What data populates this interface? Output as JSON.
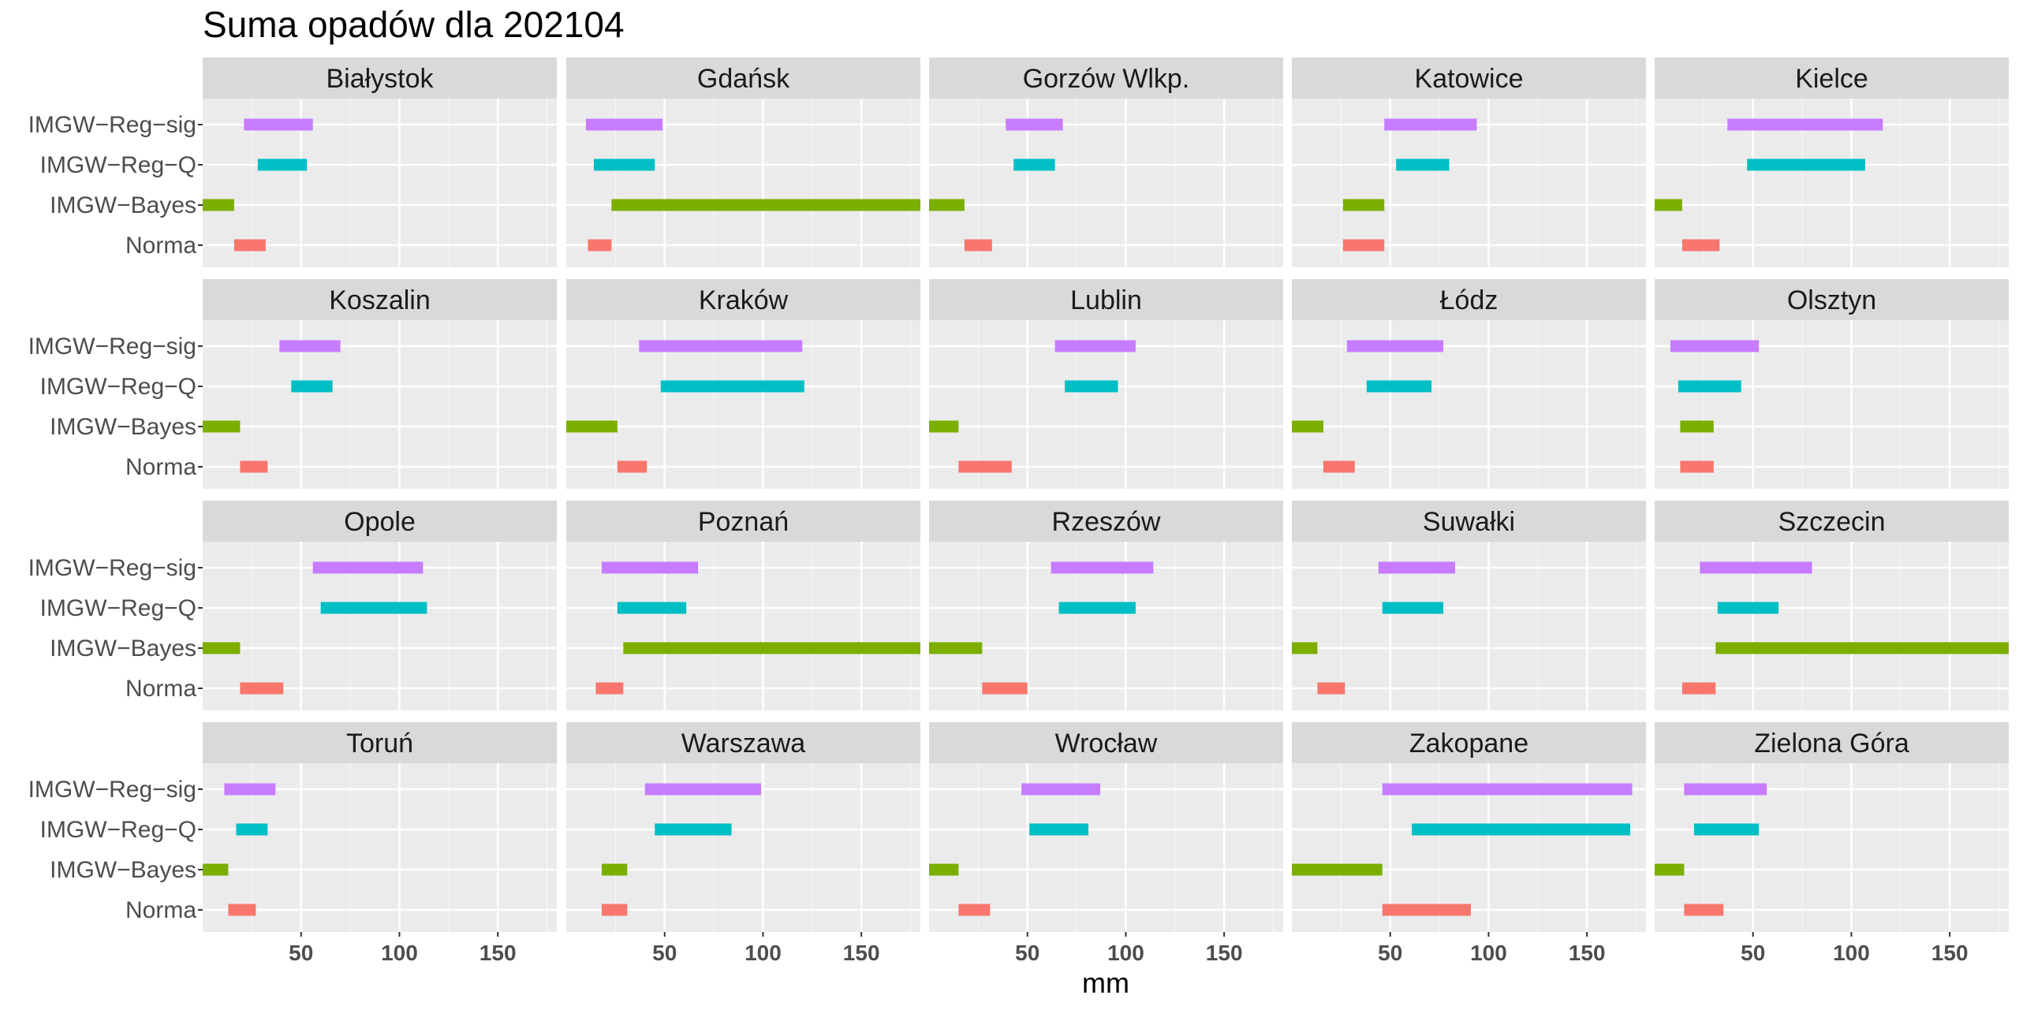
{
  "chart_data": {
    "type": "bar",
    "subtype": "range-facets",
    "title": "Suma opadów dla 202104",
    "xlabel": "mm",
    "ylabel": "",
    "xlim": [
      0,
      180
    ],
    "xticks": [
      50,
      100,
      150
    ],
    "categories": [
      "IMGW−Reg−sig",
      "IMGW−Reg−Q",
      "IMGW−Bayes",
      "Norma"
    ],
    "category_colors": [
      "#C77CFF",
      "#00BFC4",
      "#7CAE00",
      "#F8766D"
    ],
    "legend": "none",
    "grid": true,
    "panels": [
      {
        "name": "Białystok",
        "ranges": [
          [
            21,
            56
          ],
          [
            28,
            53
          ],
          [
            0,
            16
          ],
          [
            16,
            32
          ]
        ]
      },
      {
        "name": "Gdańsk",
        "ranges": [
          [
            10,
            49
          ],
          [
            14,
            45
          ],
          [
            23,
            180
          ],
          [
            11,
            23
          ]
        ]
      },
      {
        "name": "Gorzów Wlkp.",
        "ranges": [
          [
            39,
            68
          ],
          [
            43,
            64
          ],
          [
            0,
            18
          ],
          [
            18,
            32
          ]
        ]
      },
      {
        "name": "Katowice",
        "ranges": [
          [
            47,
            94
          ],
          [
            53,
            80
          ],
          [
            26,
            47
          ],
          [
            26,
            47
          ]
        ]
      },
      {
        "name": "Kielce",
        "ranges": [
          [
            37,
            116
          ],
          [
            47,
            107
          ],
          [
            0,
            14
          ],
          [
            14,
            33
          ]
        ]
      },
      {
        "name": "Koszalin",
        "ranges": [
          [
            39,
            70
          ],
          [
            45,
            66
          ],
          [
            0,
            19
          ],
          [
            19,
            33
          ]
        ]
      },
      {
        "name": "Kraków",
        "ranges": [
          [
            37,
            120
          ],
          [
            48,
            121
          ],
          [
            0,
            26
          ],
          [
            26,
            41
          ]
        ]
      },
      {
        "name": "Lublin",
        "ranges": [
          [
            64,
            105
          ],
          [
            69,
            96
          ],
          [
            0,
            15
          ],
          [
            15,
            42
          ]
        ]
      },
      {
        "name": "Łódz",
        "ranges": [
          [
            28,
            77
          ],
          [
            38,
            71
          ],
          [
            0,
            16
          ],
          [
            16,
            32
          ]
        ]
      },
      {
        "name": "Olsztyn",
        "ranges": [
          [
            8,
            53
          ],
          [
            12,
            44
          ],
          [
            13,
            30
          ],
          [
            13,
            30
          ]
        ]
      },
      {
        "name": "Opole",
        "ranges": [
          [
            56,
            112
          ],
          [
            60,
            114
          ],
          [
            0,
            19
          ],
          [
            19,
            41
          ]
        ]
      },
      {
        "name": "Poznań",
        "ranges": [
          [
            18,
            67
          ],
          [
            26,
            61
          ],
          [
            29,
            180
          ],
          [
            15,
            29
          ]
        ]
      },
      {
        "name": "Rzeszów",
        "ranges": [
          [
            62,
            114
          ],
          [
            66,
            105
          ],
          [
            0,
            27
          ],
          [
            27,
            50
          ]
        ]
      },
      {
        "name": "Suwałki",
        "ranges": [
          [
            44,
            83
          ],
          [
            46,
            77
          ],
          [
            0,
            13
          ],
          [
            13,
            27
          ]
        ]
      },
      {
        "name": "Szczecin",
        "ranges": [
          [
            23,
            80
          ],
          [
            32,
            63
          ],
          [
            31,
            180
          ],
          [
            14,
            31
          ]
        ]
      },
      {
        "name": "Toruń",
        "ranges": [
          [
            11,
            37
          ],
          [
            17,
            33
          ],
          [
            0,
            13
          ],
          [
            13,
            27
          ]
        ]
      },
      {
        "name": "Warszawa",
        "ranges": [
          [
            40,
            99
          ],
          [
            45,
            84
          ],
          [
            18,
            31
          ],
          [
            18,
            31
          ]
        ]
      },
      {
        "name": "Wrocław",
        "ranges": [
          [
            47,
            87
          ],
          [
            51,
            81
          ],
          [
            0,
            15
          ],
          [
            15,
            31
          ]
        ]
      },
      {
        "name": "Zakopane",
        "ranges": [
          [
            46,
            173
          ],
          [
            61,
            172
          ],
          [
            0,
            46
          ],
          [
            46,
            91
          ]
        ]
      },
      {
        "name": "Zielona Góra",
        "ranges": [
          [
            15,
            57
          ],
          [
            20,
            53
          ],
          [
            0,
            15
          ],
          [
            15,
            35
          ]
        ]
      }
    ]
  }
}
